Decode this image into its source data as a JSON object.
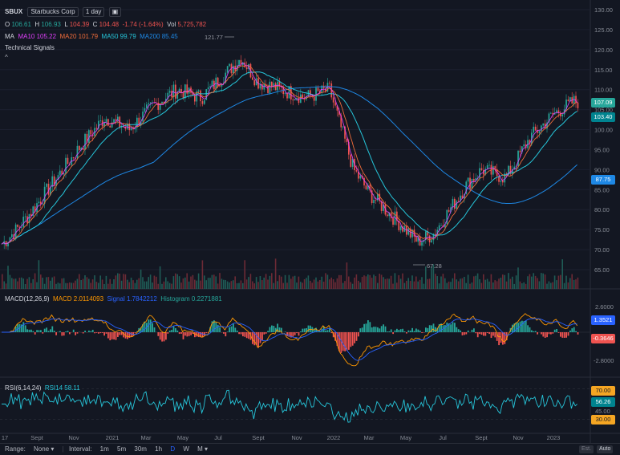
{
  "header": {
    "symbol": "SBUX",
    "company": "Starbucks Corp",
    "interval": "1 day",
    "ohlc": {
      "o_label": "O",
      "o": "106.61",
      "h_label": "H",
      "h": "106.93",
      "l_label": "L",
      "l": "104.39",
      "c_label": "C",
      "c": "104.48",
      "change": "-1.74 (-1.64%)",
      "vol_label": "Vol",
      "vol": "5,725,782"
    },
    "ma": {
      "label": "MA",
      "ma10": "MA10 105.22",
      "ma20": "MA20 101.79",
      "ma50": "MA50 99.79",
      "ma200": "MA200 85.45"
    },
    "signals": "Technical Signals",
    "collapse": "^"
  },
  "colors": {
    "bg": "#131722",
    "up": "#26a69a",
    "down": "#ef5350",
    "ma10": "#e040fb",
    "ma20": "#ef6c3a",
    "ma50": "#26c6da",
    "ma200": "#1e88e5",
    "macd": "#ff9800",
    "signal": "#2962ff",
    "rsi": "#26c6da"
  },
  "price_axis": [
    "130.00",
    "125.00",
    "120.00",
    "115.00",
    "110.00",
    "105.00",
    "100.00",
    "95.00",
    "90.00",
    "85.00",
    "80.00",
    "75.00",
    "70.00",
    "65.00"
  ],
  "price_tags": {
    "last": "107.09",
    "ma20": "103.40",
    "ma200": "87.75"
  },
  "annotations": {
    "high": "121.77",
    "low": "67.28"
  },
  "macd": {
    "title": "MACD(12,26,9)",
    "macd": "MACD 2.0114093",
    "signal": "Signal 1.7842212",
    "hist": "Histogram 0.2271881",
    "axis": [
      "2.6000",
      "-2.8000"
    ],
    "tags": [
      "1.3521",
      "-0.3646"
    ]
  },
  "rsi": {
    "title": "RSI(6,14,24)",
    "rsi14": "RSI14 58.11",
    "axis": "45.00",
    "tags": [
      "70.00",
      "56.26",
      "30.00"
    ]
  },
  "time_axis": [
    "17",
    "Sept",
    "Nov",
    "2021",
    "Mar",
    "May",
    "Jul",
    "Sept",
    "Nov",
    "2022",
    "Mar",
    "May",
    "Jul",
    "Sept",
    "Nov",
    "2023"
  ],
  "bottom": {
    "range_label": "Range:",
    "range_value": "None ▾",
    "interval_label": "Interval:",
    "intervals": [
      "1m",
      "5m",
      "30m",
      "1h",
      "D",
      "W",
      "M ▾"
    ],
    "est": "Est.",
    "auto": "Auto"
  },
  "chart_data": {
    "type": "line",
    "title": "",
    "points_close": [
      [
        0,
        71
      ],
      [
        20,
        75
      ],
      [
        40,
        80
      ],
      [
        70,
        88
      ],
      [
        100,
        96
      ],
      [
        130,
        103
      ],
      [
        160,
        100
      ],
      [
        190,
        106
      ],
      [
        220,
        110
      ],
      [
        250,
        108
      ],
      [
        280,
        114
      ],
      [
        300,
        118
      ],
      [
        320,
        112
      ],
      [
        350,
        110
      ],
      [
        380,
        108
      ],
      [
        410,
        110
      ],
      [
        425,
        100
      ],
      [
        440,
        90
      ],
      [
        460,
        84
      ],
      [
        480,
        80
      ],
      [
        500,
        76
      ],
      [
        520,
        72
      ],
      [
        540,
        74
      ],
      [
        560,
        80
      ],
      [
        580,
        86
      ],
      [
        600,
        90
      ],
      [
        630,
        88
      ],
      [
        660,
        98
      ],
      [
        690,
        104
      ],
      [
        715,
        107
      ]
    ],
    "ylim": [
      63,
      132
    ],
    "xlabel": "",
    "ylabel": ""
  }
}
